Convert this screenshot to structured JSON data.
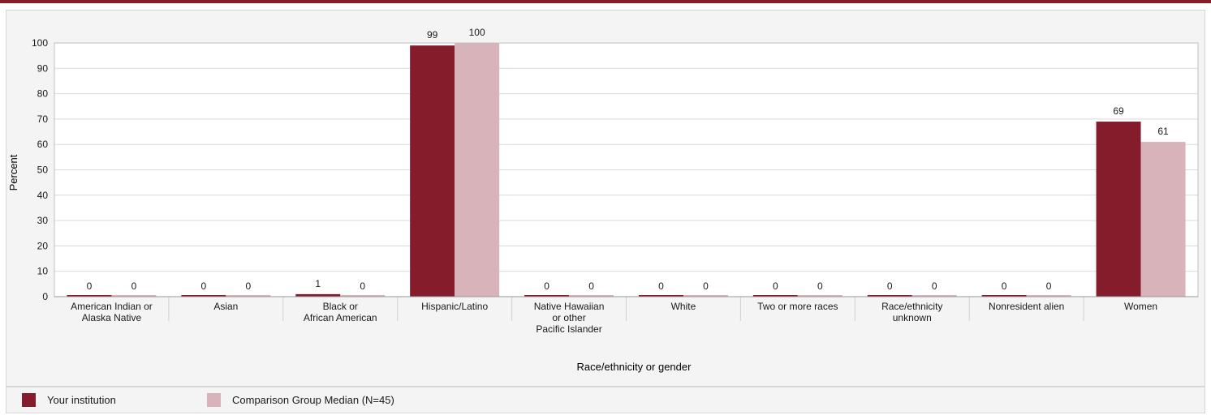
{
  "chart_data": {
    "type": "bar",
    "title": "",
    "xlabel": "Race/ethnicity or gender",
    "ylabel": "Percent",
    "ylim": [
      0,
      100
    ],
    "yticks": [
      0,
      10,
      20,
      30,
      40,
      50,
      60,
      70,
      80,
      90,
      100
    ],
    "grid": true,
    "legend_position": "bottom",
    "categories": [
      [
        "American Indian or",
        "Alaska Native"
      ],
      [
        "Asian"
      ],
      [
        "Black or",
        "African American"
      ],
      [
        "Hispanic/Latino"
      ],
      [
        "Native Hawaiian",
        "or other",
        "Pacific Islander"
      ],
      [
        "White"
      ],
      [
        "Two or more races"
      ],
      [
        "Race/ethnicity",
        "unknown"
      ],
      [
        "Nonresident alien"
      ],
      [
        "Women"
      ]
    ],
    "series": [
      {
        "name": "Your institution",
        "color": "#841c2c",
        "values": [
          0,
          0,
          1,
          99,
          0,
          0,
          0,
          0,
          0,
          69
        ]
      },
      {
        "name": "Comparison Group Median (N=45)",
        "color": "#d8b3b9",
        "values": [
          0,
          0,
          0,
          100,
          0,
          0,
          0,
          0,
          0,
          61
        ]
      }
    ]
  }
}
